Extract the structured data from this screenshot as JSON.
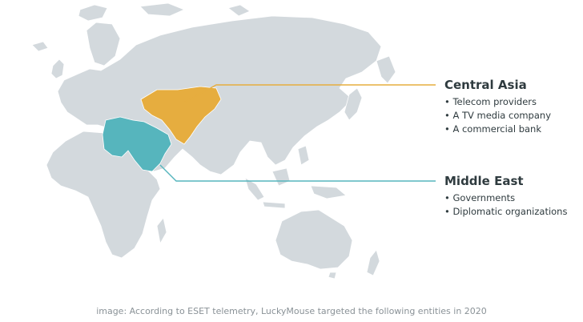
{
  "colors": {
    "land": "#d3d9dd",
    "border": "#ffffff",
    "central_asia": "#e6ad3f",
    "middle_east": "#56b5bd"
  },
  "regions": [
    {
      "title": "Central Asia",
      "items": [
        "Telecom providers",
        "A TV media company",
        "A commercial bank"
      ]
    },
    {
      "title": "Middle East",
      "items": [
        "Governments",
        "Diplomatic organizations"
      ]
    }
  ],
  "caption": "image: According to ESET telemetry, LuckyMouse targeted the following entities in 2020"
}
